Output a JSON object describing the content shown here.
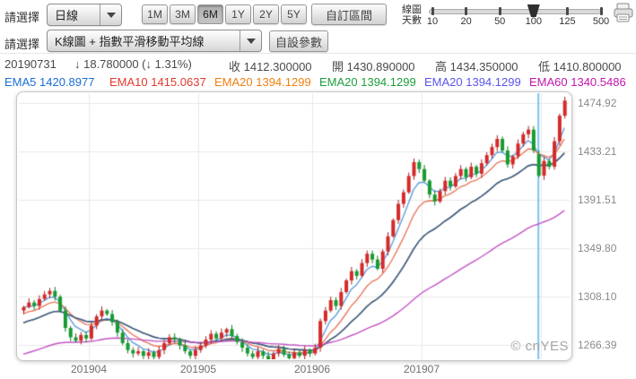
{
  "toolbar": {
    "select_label": "請選擇",
    "period_dropdown_value": "日線",
    "range_buttons": [
      {
        "label": "1M",
        "active": false
      },
      {
        "label": "3M",
        "active": false
      },
      {
        "label": "6M",
        "active": true
      },
      {
        "label": "1Y",
        "active": false
      },
      {
        "label": "2Y",
        "active": false
      },
      {
        "label": "5Y",
        "active": false
      }
    ],
    "custom_range_label": "自訂區間",
    "days_slider": {
      "label_line1": "線圖",
      "label_line2": "天數",
      "ticks": [
        "10",
        "20",
        "50",
        "100",
        "125",
        "500"
      ],
      "value": "100"
    }
  },
  "toolbar2": {
    "select_label": "請選擇",
    "chart_type_dropdown_value": "K線圖 + 指數平滑移動平均線",
    "custom_params_label": "自設參數"
  },
  "info_bar": {
    "date": "20190731",
    "change": "↓ 18.780000 (↓ 1.31%)",
    "fields": [
      {
        "label": "收",
        "value": "1412.300000"
      },
      {
        "label": "開",
        "value": "1430.890000"
      },
      {
        "label": "高",
        "value": "1434.350000"
      },
      {
        "label": "低",
        "value": "1410.800000"
      }
    ]
  },
  "ema_legend": [
    {
      "label": "EMA5",
      "value": "1420.8977",
      "color": "#1a6fd4"
    },
    {
      "label": "EMA10",
      "value": "1415.0637",
      "color": "#e23a2e"
    },
    {
      "label": "EMA20",
      "value": "1394.1299",
      "color": "#ee8012"
    },
    {
      "label": "EMA20",
      "value": "1394.1299",
      "color": "#1d9e3a"
    },
    {
      "label": "EMA20",
      "value": "1394.1299",
      "color": "#5a55ea"
    },
    {
      "label": "EMA60",
      "value": "1340.5486",
      "color": "#c215ad"
    }
  ],
  "watermark": "© cnYES",
  "chart_data": {
    "type": "candlestick",
    "title": "",
    "y_ticks": [
      "1474.92",
      "1433.21",
      "1391.51",
      "1349.80",
      "1308.10",
      "1266.39"
    ],
    "y_tick_values": [
      1474.92,
      1433.21,
      1391.51,
      1349.8,
      1308.1,
      1266.39
    ],
    "x_ticks": [
      "201904",
      "201905",
      "201906",
      "201907"
    ],
    "ylim": [
      1254,
      1482
    ],
    "grid": true,
    "closes": [
      1299,
      1303,
      1300,
      1306,
      1310,
      1313,
      1308,
      1296,
      1281,
      1273,
      1270,
      1275,
      1272,
      1283,
      1291,
      1296,
      1293,
      1286,
      1277,
      1268,
      1262,
      1259,
      1261,
      1257,
      1260,
      1256,
      1262,
      1268,
      1273,
      1271,
      1266,
      1261,
      1257,
      1262,
      1266,
      1271,
      1276,
      1272,
      1277,
      1280,
      1274,
      1269,
      1264,
      1259,
      1256,
      1261,
      1257,
      1254,
      1259,
      1263,
      1258,
      1255,
      1260,
      1257,
      1262,
      1259,
      1264,
      1287,
      1296,
      1305,
      1300,
      1312,
      1322,
      1330,
      1326,
      1337,
      1345,
      1340,
      1332,
      1347,
      1360,
      1374,
      1388,
      1398,
      1412,
      1424,
      1418,
      1408,
      1396,
      1390,
      1399,
      1408,
      1403,
      1412,
      1418,
      1411,
      1420,
      1414,
      1423,
      1430,
      1437,
      1444,
      1434,
      1422,
      1429,
      1440,
      1448,
      1452,
      1434,
      1412.3,
      1425,
      1420,
      1442,
      1464,
      1477
    ],
    "highlight_candle": {
      "index": 99,
      "date": "20190731",
      "open": 1430.89,
      "high": 1434.35,
      "low": 1410.8,
      "close": 1412.3
    },
    "crosshair_index": 99,
    "ema_lines": [
      {
        "period": 5,
        "seed": 1298,
        "color": "#5f9fe0"
      },
      {
        "period": 10,
        "seed": 1292,
        "color": "#e8795f"
      },
      {
        "period": 20,
        "seed": 1284,
        "color": "#ee8822"
      },
      {
        "period": 20,
        "seed": 1284,
        "color": "#22a344"
      },
      {
        "period": 20,
        "seed": 1284,
        "color": "#4a5aa0"
      },
      {
        "period": 60,
        "seed": 1257,
        "color": "#c353c4"
      }
    ],
    "colors": {
      "up": "#d42a2a",
      "up_border": "#a81d1d",
      "down": "#169b30",
      "down_border": "#0d7a22",
      "grid": "#e8e8e8",
      "crosshair": "#79c3f2"
    }
  }
}
